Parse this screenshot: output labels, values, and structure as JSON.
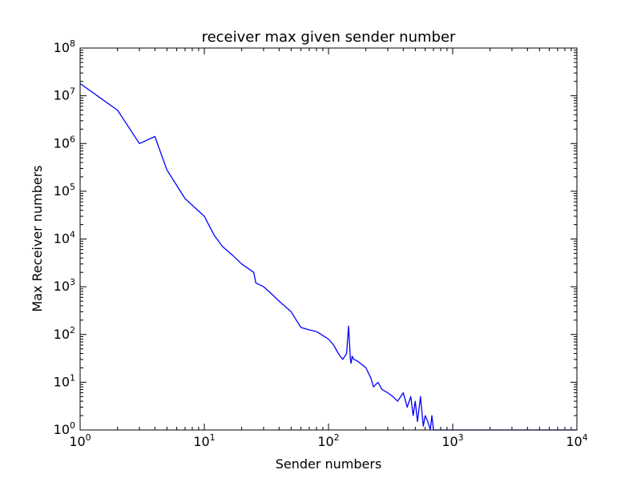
{
  "chart_data": {
    "type": "line",
    "title": "receiver max given sender number",
    "xlabel": "Sender numbers",
    "ylabel": "Max Receiver numbers",
    "xscale": "log",
    "yscale": "log",
    "xlim": [
      1,
      10000
    ],
    "ylim": [
      1,
      100000000
    ],
    "grid": false,
    "line_color": "#0000ff",
    "x_ticks": [
      {
        "base": "10",
        "exp": "0"
      },
      {
        "base": "10",
        "exp": "1"
      },
      {
        "base": "10",
        "exp": "2"
      },
      {
        "base": "10",
        "exp": "3"
      },
      {
        "base": "10",
        "exp": "4"
      }
    ],
    "y_ticks": [
      {
        "base": "10",
        "exp": "0"
      },
      {
        "base": "10",
        "exp": "1"
      },
      {
        "base": "10",
        "exp": "2"
      },
      {
        "base": "10",
        "exp": "3"
      },
      {
        "base": "10",
        "exp": "4"
      },
      {
        "base": "10",
        "exp": "5"
      },
      {
        "base": "10",
        "exp": "6"
      },
      {
        "base": "10",
        "exp": "7"
      },
      {
        "base": "10",
        "exp": "8"
      }
    ],
    "series": [
      {
        "x": [
          1,
          2,
          3,
          4,
          5,
          7,
          10,
          12,
          14,
          17,
          20,
          25,
          26,
          30,
          35,
          40,
          50,
          55,
          60,
          70,
          80,
          90,
          100,
          110,
          120,
          130,
          140,
          145,
          148,
          150,
          152,
          155,
          160,
          170,
          180,
          200,
          220,
          230,
          250,
          270,
          300,
          330,
          360,
          400,
          430,
          460,
          480,
          500,
          520,
          550,
          580,
          600,
          630,
          660,
          680,
          700,
          1000,
          2000,
          10000
        ],
        "y": [
          18000000,
          5000000,
          1000000,
          1400000,
          280000,
          70000,
          30000,
          12000,
          7000,
          4500,
          3000,
          2000,
          1200,
          1000,
          700,
          500,
          300,
          200,
          140,
          125,
          115,
          95,
          80,
          60,
          40,
          30,
          40,
          150,
          60,
          30,
          25,
          35,
          30,
          28,
          25,
          20,
          12,
          8,
          10,
          7,
          6,
          5,
          4,
          6,
          3,
          5,
          2,
          4,
          1.5,
          5,
          1.2,
          2,
          1.5,
          1,
          2,
          1,
          1,
          1,
          1
        ]
      }
    ]
  }
}
